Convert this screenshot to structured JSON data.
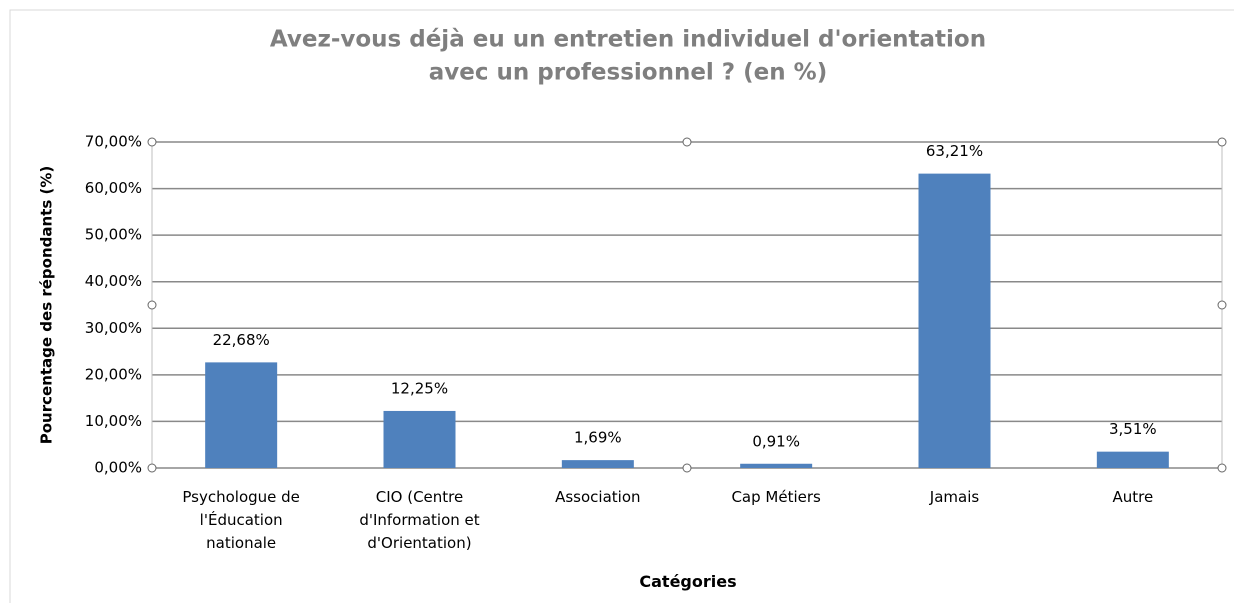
{
  "chart_data": {
    "type": "bar",
    "title": [
      "Avez-vous déjà eu un entretien individuel d'orientation",
      "avec un professionnel ? (en %)"
    ],
    "y_label": "Pourcentage des répondants (%)",
    "x_label": "Catégories",
    "categories": [
      "Psychologue de l'Éducation nationale",
      "CIO (Centre d'Information et d'Orientation)",
      "Association",
      "Cap Métiers",
      "Jamais",
      "Autre"
    ],
    "values": [
      22.68,
      12.25,
      1.69,
      0.91,
      63.21,
      3.51
    ],
    "value_labels": [
      "22,68%",
      "12,25%",
      "1,69%",
      "0,91%",
      "63,21%",
      "3,51%"
    ],
    "color": "#4f81bd",
    "ylim": [
      0,
      70
    ],
    "yticks": [
      {
        "value": 0,
        "label": "0,00%"
      },
      {
        "value": 10,
        "label": "10,00%"
      },
      {
        "value": 20,
        "label": "20,00%"
      },
      {
        "value": 30,
        "label": "30,00%"
      },
      {
        "value": 40,
        "label": "40,00%"
      },
      {
        "value": 50,
        "label": "50,00%"
      },
      {
        "value": 60,
        "label": "60,00%"
      },
      {
        "value": 70,
        "label": "70,00%"
      }
    ],
    "grid": true
  }
}
